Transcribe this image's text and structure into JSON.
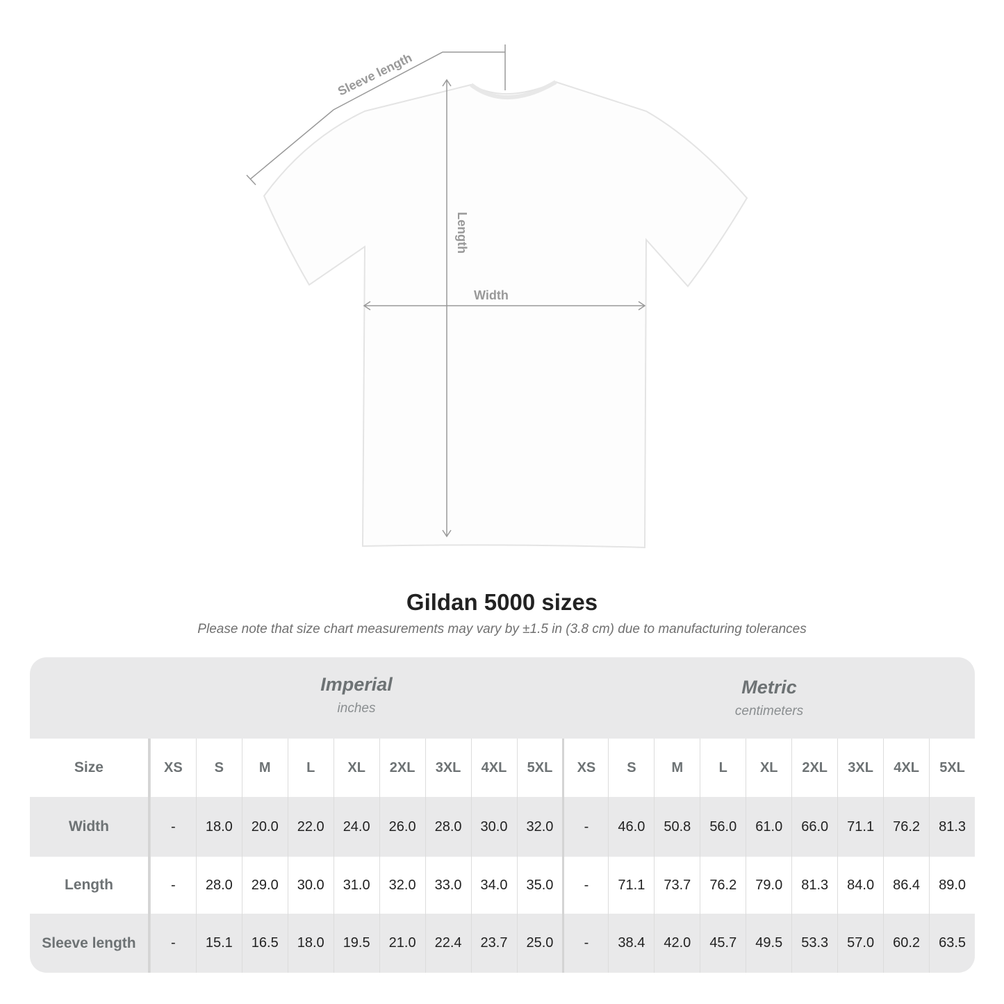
{
  "diagram": {
    "sleeve_label": "Sleeve length",
    "length_label": "Length",
    "width_label": "Width",
    "annotation_color": "#999999"
  },
  "header": {
    "title": "Gildan 5000 sizes",
    "note": "Please note that size chart measurements may vary by ±1.5 in (3.8 cm) due to manufacturing tolerances"
  },
  "table": {
    "imperial": {
      "name": "Imperial",
      "unit": "inches"
    },
    "metric": {
      "name": "Metric",
      "unit": "centimeters"
    },
    "size_label": "Size",
    "sizes": [
      "XS",
      "S",
      "M",
      "L",
      "XL",
      "2XL",
      "3XL",
      "4XL",
      "5XL"
    ],
    "rows": [
      {
        "label": "Width",
        "imperial": [
          "-",
          "18.0",
          "20.0",
          "22.0",
          "24.0",
          "26.0",
          "28.0",
          "30.0",
          "32.0"
        ],
        "metric": [
          "-",
          "46.0",
          "50.8",
          "56.0",
          "61.0",
          "66.0",
          "71.1",
          "76.2",
          "81.3"
        ]
      },
      {
        "label": "Length",
        "imperial": [
          "-",
          "28.0",
          "29.0",
          "30.0",
          "31.0",
          "32.0",
          "33.0",
          "34.0",
          "35.0"
        ],
        "metric": [
          "-",
          "71.1",
          "73.7",
          "76.2",
          "79.0",
          "81.3",
          "84.0",
          "86.4",
          "89.0"
        ]
      },
      {
        "label": "Sleeve length",
        "imperial": [
          "-",
          "15.1",
          "16.5",
          "18.0",
          "19.5",
          "21.0",
          "22.4",
          "23.7",
          "25.0"
        ],
        "metric": [
          "-",
          "38.4",
          "42.0",
          "45.7",
          "49.5",
          "53.3",
          "57.0",
          "60.2",
          "63.5"
        ]
      }
    ]
  }
}
